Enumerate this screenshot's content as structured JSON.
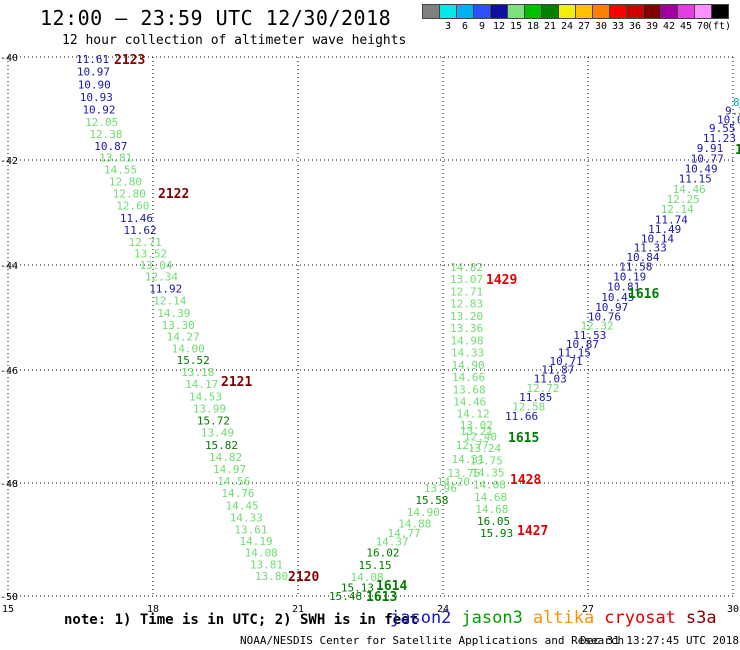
{
  "title": "12:00 – 23:59 UTC 12/30/2018",
  "subtitle": "12 hour collection of altimeter wave heights",
  "scale": {
    "unit_label": "(ft)",
    "bins": [
      {
        "label": "",
        "color": "#808080"
      },
      {
        "label": "3",
        "color": "#00e8e8"
      },
      {
        "label": "6",
        "color": "#00b0f0"
      },
      {
        "label": "9",
        "color": "#3050ff"
      },
      {
        "label": "12",
        "color": "#1010a0"
      },
      {
        "label": "15",
        "color": "#7ee07e"
      },
      {
        "label": "18",
        "color": "#00c000"
      },
      {
        "label": "21",
        "color": "#008000"
      },
      {
        "label": "24",
        "color": "#f0f000"
      },
      {
        "label": "27",
        "color": "#ffc000"
      },
      {
        "label": "30",
        "color": "#ff8000"
      },
      {
        "label": "33",
        "color": "#ff0000"
      },
      {
        "label": "36",
        "color": "#d00000"
      },
      {
        "label": "39",
        "color": "#800000"
      },
      {
        "label": "42",
        "color": "#a000a0"
      },
      {
        "label": "45",
        "color": "#e040e0"
      },
      {
        "label": "70",
        "color": "#ff90ff"
      },
      {
        "label": "",
        "color": "#000000"
      }
    ]
  },
  "axes": {
    "x_ticks": [
      "15",
      "18",
      "21",
      "24",
      "27",
      "30"
    ],
    "y_ticks": [
      "-40",
      "-42",
      "-44",
      "-46",
      "-48",
      "-50"
    ]
  },
  "colors": {
    "blue_value": "#1818a8",
    "green_value": "#70dc70",
    "darkgreen_value": "#007a00",
    "cyan_value": "#00a8c8",
    "maroon_label": "#800000",
    "red_label": "#e00000"
  },
  "tracks": [
    {
      "name": "track-2123",
      "points": [
        {
          "v": "11.61",
          "c": "blue"
        },
        {
          "v": "10.97",
          "c": "blue"
        },
        {
          "v": "10.90",
          "c": "blue"
        },
        {
          "v": "10.93",
          "c": "blue"
        },
        {
          "v": "10.92",
          "c": "blue"
        },
        {
          "v": "12.05",
          "c": "green"
        },
        {
          "v": "12.38",
          "c": "green"
        },
        {
          "v": "10.87",
          "c": "blue"
        },
        {
          "v": "13.81",
          "c": "green"
        },
        {
          "v": "14.55",
          "c": "green"
        },
        {
          "v": "12.80",
          "c": "green"
        },
        {
          "v": "12.80",
          "c": "green"
        },
        {
          "v": "12.60",
          "c": "green"
        },
        {
          "v": "11.46",
          "c": "blue"
        },
        {
          "v": "11.62",
          "c": "blue"
        },
        {
          "v": "12.71",
          "c": "green"
        },
        {
          "v": "13.52",
          "c": "green"
        },
        {
          "v": "13.04",
          "c": "green"
        },
        {
          "v": "12.34",
          "c": "green"
        },
        {
          "v": "11.92",
          "c": "blue"
        },
        {
          "v": "12.14",
          "c": "green"
        },
        {
          "v": "14.39",
          "c": "green"
        },
        {
          "v": "13.30",
          "c": "green"
        },
        {
          "v": "14.27",
          "c": "green"
        },
        {
          "v": "14.00",
          "c": "green"
        },
        {
          "v": "15.52",
          "c": "darkgreen"
        },
        {
          "v": "13.18",
          "c": "green"
        },
        {
          "v": "14.17",
          "c": "green"
        },
        {
          "v": "14.53",
          "c": "green"
        },
        {
          "v": "13.99",
          "c": "green"
        },
        {
          "v": "15.72",
          "c": "darkgreen"
        },
        {
          "v": "13.49",
          "c": "green"
        },
        {
          "v": "15.82",
          "c": "darkgreen"
        },
        {
          "v": "14.82",
          "c": "green"
        },
        {
          "v": "14.97",
          "c": "green"
        },
        {
          "v": "14.56",
          "c": "green"
        },
        {
          "v": "14.76",
          "c": "green"
        },
        {
          "v": "14.45",
          "c": "green"
        },
        {
          "v": "14.33",
          "c": "green"
        },
        {
          "v": "13.61",
          "c": "green"
        },
        {
          "v": "14.19",
          "c": "green"
        },
        {
          "v": "14.08",
          "c": "green"
        },
        {
          "v": "13.81",
          "c": "green"
        },
        {
          "v": "13.80",
          "c": "green"
        }
      ]
    },
    {
      "name": "track-1614",
      "points": [
        {
          "v": "15.48",
          "c": "darkgreen"
        },
        {
          "v": "15.13",
          "c": "darkgreen"
        },
        {
          "v": "14.08",
          "c": "green"
        },
        {
          "v": "15.15",
          "c": "darkgreen"
        },
        {
          "v": "16.02",
          "c": "darkgreen"
        },
        {
          "v": "14.37",
          "c": "green"
        },
        {
          "v": "14.77",
          "c": "green"
        },
        {
          "v": "14.88",
          "c": "green"
        },
        {
          "v": "14.90",
          "c": "green"
        },
        {
          "v": "15.58",
          "c": "darkgreen"
        },
        {
          "v": "13.96",
          "c": "green"
        },
        {
          "v": "14.20",
          "c": "green"
        },
        {
          "v": "13.75",
          "c": "green"
        },
        {
          "v": "14.31",
          "c": "green"
        },
        {
          "v": "12.77",
          "c": "green"
        },
        {
          "v": "13.21",
          "c": "green"
        }
      ]
    },
    {
      "name": "track-1616",
      "points": [
        {
          "v": "8",
          "c": "cyan"
        },
        {
          "v": "9.3",
          "c": "blue"
        },
        {
          "v": "10.0",
          "c": "blue"
        },
        {
          "v": "9.55",
          "c": "blue"
        },
        {
          "v": "11.23",
          "c": "blue"
        },
        {
          "v": "9.91",
          "c": "blue"
        },
        {
          "v": "10.77",
          "c": "blue"
        },
        {
          "v": "10.49",
          "c": "blue"
        },
        {
          "v": "11.15",
          "c": "blue"
        },
        {
          "v": "14.46",
          "c": "green"
        },
        {
          "v": "12.25",
          "c": "green"
        },
        {
          "v": "12.14",
          "c": "green"
        },
        {
          "v": "11.74",
          "c": "blue"
        },
        {
          "v": "11.49",
          "c": "blue"
        },
        {
          "v": "10.14",
          "c": "blue"
        },
        {
          "v": "11.33",
          "c": "blue"
        },
        {
          "v": "10.84",
          "c": "blue"
        },
        {
          "v": "11.58",
          "c": "blue"
        },
        {
          "v": "10.19",
          "c": "blue"
        },
        {
          "v": "10.81",
          "c": "blue"
        },
        {
          "v": "10.45",
          "c": "blue"
        },
        {
          "v": "10.97",
          "c": "blue"
        },
        {
          "v": "10.76",
          "c": "blue"
        },
        {
          "v": "12.32",
          "c": "green"
        },
        {
          "v": "11.53",
          "c": "blue"
        },
        {
          "v": "10.87",
          "c": "blue"
        },
        {
          "v": "11.15",
          "c": "blue"
        },
        {
          "v": "10.71",
          "c": "blue"
        },
        {
          "v": "11.87",
          "c": "blue"
        },
        {
          "v": "11.03",
          "c": "blue"
        },
        {
          "v": "12.72",
          "c": "green"
        },
        {
          "v": "11.85",
          "c": "blue"
        },
        {
          "v": "12.58",
          "c": "green"
        },
        {
          "v": "11.66",
          "c": "blue"
        }
      ]
    },
    {
      "name": "track-1429",
      "points": [
        {
          "v": "14.82",
          "c": "green"
        },
        {
          "v": "13.07",
          "c": "green"
        },
        {
          "v": "12.71",
          "c": "green"
        },
        {
          "v": "12.83",
          "c": "green"
        },
        {
          "v": "13.20",
          "c": "green"
        },
        {
          "v": "13.36",
          "c": "green"
        },
        {
          "v": "14.98",
          "c": "green"
        },
        {
          "v": "14.33",
          "c": "green"
        },
        {
          "v": "14.90",
          "c": "green"
        },
        {
          "v": "14.66",
          "c": "green"
        },
        {
          "v": "13.68",
          "c": "green"
        },
        {
          "v": "14.46",
          "c": "green"
        },
        {
          "v": "14.12",
          "c": "green"
        },
        {
          "v": "13.02",
          "c": "green"
        },
        {
          "v": "12.40",
          "c": "green"
        },
        {
          "v": "13.24",
          "c": "green"
        },
        {
          "v": "13.75",
          "c": "green"
        },
        {
          "v": "14.35",
          "c": "green"
        },
        {
          "v": "14.08",
          "c": "green"
        },
        {
          "v": "14.68",
          "c": "green"
        },
        {
          "v": "14.68",
          "c": "green"
        },
        {
          "v": "16.05",
          "c": "darkgreen"
        },
        {
          "v": "15.93",
          "c": "darkgreen"
        }
      ]
    }
  ],
  "pass_labels": [
    {
      "t": "2123",
      "c": "maroon"
    },
    {
      "t": "2122",
      "c": "maroon"
    },
    {
      "t": "2121",
      "c": "maroon"
    },
    {
      "t": "2120",
      "c": "maroon"
    },
    {
      "t": "1614",
      "c": "darkgreen"
    },
    {
      "t": "1613",
      "c": "darkgreen"
    },
    {
      "t": "1616",
      "c": "darkgreen"
    },
    {
      "t": "1615",
      "c": "darkgreen"
    },
    {
      "t": "1429",
      "c": "red"
    },
    {
      "t": "1428",
      "c": "red"
    },
    {
      "t": "1427",
      "c": "red"
    },
    {
      "t": "1",
      "c": "darkgreen"
    }
  ],
  "note": "note: 1) Time is in UTC; 2) SWH is in feet",
  "legend": [
    {
      "label": "jason2",
      "color": "#1818c8"
    },
    {
      "label": "jason3",
      "color": "#00a000"
    },
    {
      "label": "altika",
      "color": "#ff9000"
    },
    {
      "label": "cryosat",
      "color": "#e00000"
    },
    {
      "label": "s3a",
      "color": "#800000"
    }
  ],
  "credit": "NOAA/NESDIS Center for Satellite Applications and Research",
  "timestamp": "Dec 31 13:27:45 UTC 2018"
}
